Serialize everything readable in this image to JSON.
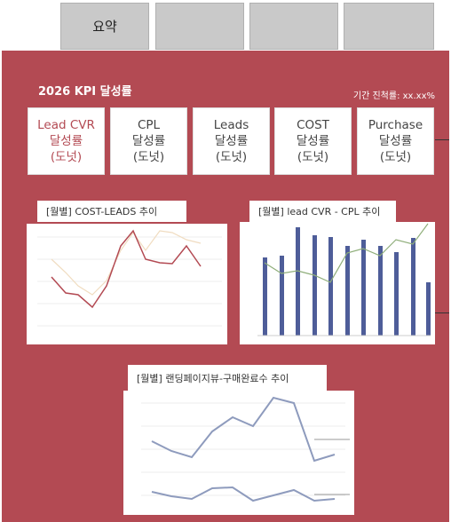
{
  "tabs": [
    {
      "label": "요약"
    }
  ],
  "header": {
    "title": "2026 KPI 달성률",
    "progress": "기간 진척률: xx.xx%"
  },
  "kpis": [
    {
      "name": "Lead CVR",
      "line2": "달성률",
      "line3": "(도넛)"
    },
    {
      "name": "CPL",
      "line2": "달성률",
      "line3": "(도넛)"
    },
    {
      "name": "Leads",
      "line2": "달성률",
      "line3": "(도넛)"
    },
    {
      "name": "COST",
      "line2": "달성률",
      "line3": "(도넛)"
    },
    {
      "name": "Purchase",
      "line2": "달성률",
      "line3": "(도넛)"
    }
  ],
  "charts": [
    {
      "title": "[월별] COST-LEADS 추이"
    },
    {
      "title": "[월별] lead CVR - CPL 추이"
    },
    {
      "title": "[월별] 랜딩페이지뷰-구매완료수 추이"
    }
  ]
}
